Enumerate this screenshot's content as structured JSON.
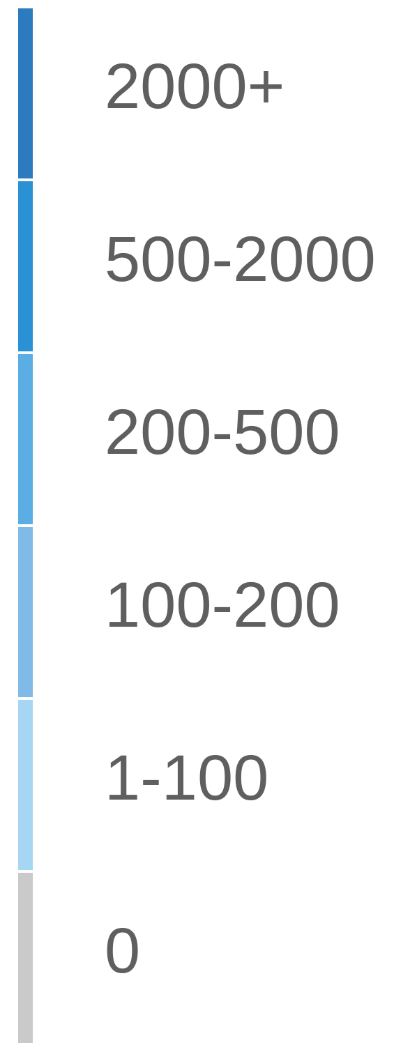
{
  "legend": {
    "items": [
      {
        "label": "2000+",
        "color": "#2c7bbf"
      },
      {
        "label": "500-2000",
        "color": "#2a91d4"
      },
      {
        "label": "200-500",
        "color": "#5aaee4"
      },
      {
        "label": "100-200",
        "color": "#80bbe8"
      },
      {
        "label": "1-100",
        "color": "#a6d6f3"
      },
      {
        "label": "0",
        "color": "#cacaca"
      }
    ]
  }
}
